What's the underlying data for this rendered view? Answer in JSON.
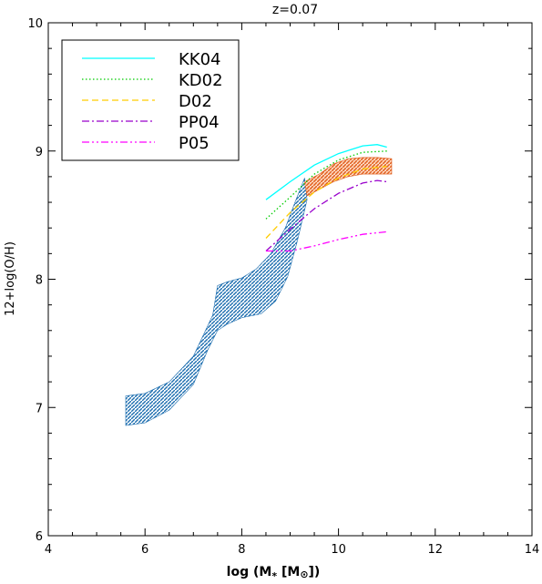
{
  "chart_data": {
    "type": "line",
    "title": "z=0.07",
    "xlabel": "log (M",
    "xlabel_sub": "*",
    "xlabel_unit": " [M",
    "xlabel_unit_sym": "⊙",
    "xlabel_close": "])",
    "ylabel": "12+log(O/H)",
    "xlim": [
      4,
      14
    ],
    "ylim": [
      6,
      10
    ],
    "xticks": [
      4,
      6,
      8,
      10,
      12,
      14
    ],
    "yticks": [
      6,
      7,
      8,
      9,
      10
    ],
    "grid": false,
    "legend_position": "top-left",
    "series": [
      {
        "name": "KK04",
        "color": "#00ffff",
        "dash": "solid",
        "x": [
          8.5,
          9.0,
          9.5,
          10.0,
          10.5,
          10.8,
          11.0
        ],
        "y": [
          8.62,
          8.76,
          8.89,
          8.98,
          9.04,
          9.05,
          9.03
        ]
      },
      {
        "name": "KD02",
        "color": "#00cc00",
        "dash": "dotted",
        "x": [
          8.5,
          9.0,
          9.5,
          10.0,
          10.5,
          11.0
        ],
        "y": [
          8.47,
          8.64,
          8.82,
          8.93,
          8.99,
          9.0
        ]
      },
      {
        "name": "D02",
        "color": "#ffcc00",
        "dash": "dashed",
        "x": [
          8.5,
          9.0,
          9.5,
          10.0,
          10.5,
          11.0
        ],
        "y": [
          8.32,
          8.52,
          8.68,
          8.79,
          8.86,
          8.88
        ]
      },
      {
        "name": "PP04",
        "color": "#9900cc",
        "dash": "dashdot",
        "x": [
          8.5,
          9.0,
          9.5,
          10.0,
          10.5,
          10.8,
          11.0
        ],
        "y": [
          8.22,
          8.39,
          8.55,
          8.67,
          8.75,
          8.77,
          8.76
        ]
      },
      {
        "name": "P05",
        "color": "#ff00ff",
        "dash": "dashdotdot",
        "x": [
          8.5,
          9.0,
          9.5,
          10.0,
          10.5,
          11.0
        ],
        "y": [
          8.22,
          8.22,
          8.26,
          8.31,
          8.35,
          8.37
        ]
      }
    ],
    "bands": [
      {
        "color": "#1f6fb0",
        "upper": {
          "x": [
            5.6,
            6.0,
            6.5,
            7.0,
            7.4,
            7.5,
            7.7,
            8.0,
            8.3,
            8.6,
            8.9,
            9.1,
            9.3
          ],
          "y": [
            7.09,
            7.11,
            7.2,
            7.4,
            7.72,
            7.95,
            7.98,
            8.01,
            8.08,
            8.2,
            8.4,
            8.6,
            8.79
          ]
        },
        "lower": {
          "x": [
            5.6,
            6.0,
            6.5,
            7.0,
            7.3,
            7.5,
            7.7,
            8.0,
            8.4,
            8.7,
            8.95,
            9.15,
            9.35
          ],
          "y": [
            6.86,
            6.88,
            6.98,
            7.18,
            7.45,
            7.6,
            7.65,
            7.7,
            7.73,
            7.83,
            8.02,
            8.3,
            8.62
          ]
        }
      },
      {
        "color": "#e06020",
        "upper": {
          "x": [
            9.3,
            9.6,
            9.9,
            10.2,
            10.5,
            10.8,
            11.1
          ],
          "y": [
            8.76,
            8.82,
            8.9,
            8.94,
            8.95,
            8.95,
            8.94
          ]
        },
        "lower": {
          "x": [
            9.35,
            9.6,
            9.9,
            10.2,
            10.5,
            10.8,
            11.1
          ],
          "y": [
            8.65,
            8.7,
            8.76,
            8.8,
            8.82,
            8.82,
            8.82
          ]
        }
      }
    ]
  }
}
